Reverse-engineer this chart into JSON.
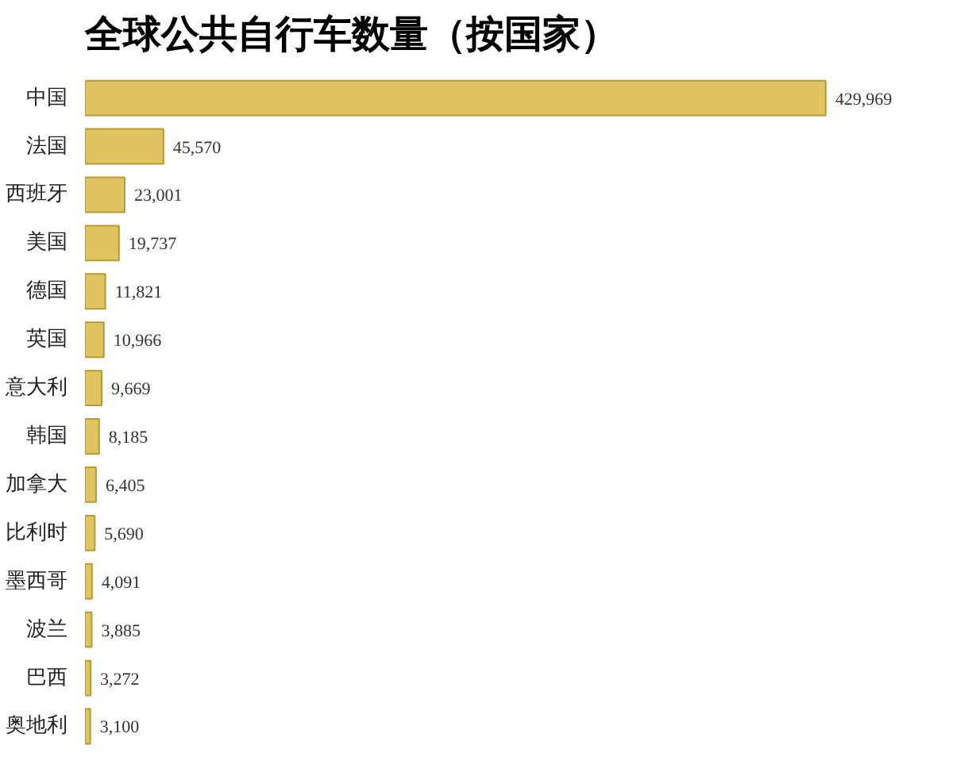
{
  "chart_data": {
    "type": "bar",
    "orientation": "horizontal",
    "title": "全球公共自行车数量（按国家）",
    "categories": [
      "中国",
      "法国",
      "西班牙",
      "美国",
      "德国",
      "英国",
      "意大利",
      "韩国",
      "加拿大",
      "比利时",
      "墨西哥",
      "波兰",
      "巴西",
      "奥地利"
    ],
    "values": [
      429969,
      45570,
      23001,
      19737,
      11821,
      10966,
      9669,
      8185,
      6405,
      5690,
      4091,
      3885,
      3272,
      3100
    ],
    "color": "#e0c462",
    "data_labels": true,
    "value_labels": [
      "429,969",
      "45,570",
      "23,001",
      "19,737",
      "11,821",
      "10,966",
      "9,669",
      "8,185",
      "6,405",
      "5,690",
      "4,091",
      "3,885",
      "3,272",
      "3,100"
    ]
  }
}
